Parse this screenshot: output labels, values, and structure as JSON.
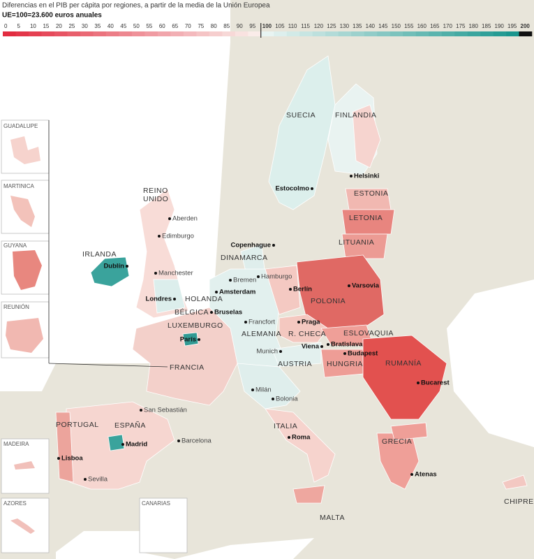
{
  "header": {
    "title": "Diferencias en el PIB per cápita por regiones, a partir de la media de la Unión Europea",
    "subtitle": "UE=100=23.600 euros anuales"
  },
  "legend": {
    "ticks": [
      0,
      5,
      10,
      15,
      20,
      25,
      30,
      35,
      40,
      45,
      50,
      55,
      60,
      65,
      70,
      75,
      80,
      85,
      90,
      95,
      100,
      105,
      110,
      115,
      120,
      125,
      130,
      135,
      140,
      145,
      150,
      155,
      160,
      165,
      170,
      175,
      180,
      185,
      190,
      195,
      200
    ]
  },
  "countries": [
    "SUECIA",
    "FINLANDIA",
    "REINO",
    "UNIDO",
    "ESTONIA",
    "LETONIA",
    "LITUANIA",
    "IRLANDA",
    "DINAMARCA",
    "POLONIA",
    "HOLANDA",
    "BÉLGICA",
    "LUXEMBURGO",
    "ALEMANIA",
    "R. CHECA",
    "ESLOVAQUIA",
    "AUSTRIA",
    "HUNGRIA",
    "RUMANÍA",
    "FRANCIA",
    "PORTUGAL",
    "ESPAÑA",
    "ITALIA",
    "GRECIA",
    "MALTA",
    "CHIPRE"
  ],
  "cities": [
    {
      "name": "Helsinki",
      "capital": true
    },
    {
      "name": "Estocolmo",
      "capital": true
    },
    {
      "name": "Aberden",
      "capital": false
    },
    {
      "name": "Edimburgo",
      "capital": false
    },
    {
      "name": "Copenhague",
      "capital": true
    },
    {
      "name": "Dublín",
      "capital": true
    },
    {
      "name": "Manchester",
      "capital": false
    },
    {
      "name": "Bremen",
      "capital": false
    },
    {
      "name": "Hamburgo",
      "capital": false
    },
    {
      "name": "Amsterdam",
      "capital": true
    },
    {
      "name": "Berlín",
      "capital": true
    },
    {
      "name": "Varsovia",
      "capital": true
    },
    {
      "name": "Londres",
      "capital": true
    },
    {
      "name": "Bruselas",
      "capital": true
    },
    {
      "name": "Francfort",
      "capital": false
    },
    {
      "name": "Praga",
      "capital": true
    },
    {
      "name": "París",
      "capital": true
    },
    {
      "name": "Bratislava",
      "capital": true
    },
    {
      "name": "Viena",
      "capital": true
    },
    {
      "name": "Budapest",
      "capital": true
    },
    {
      "name": "Munich",
      "capital": false
    },
    {
      "name": "Bucarest",
      "capital": true
    },
    {
      "name": "Milán",
      "capital": false
    },
    {
      "name": "Bolonia",
      "capital": false
    },
    {
      "name": "San Sebastián",
      "capital": false
    },
    {
      "name": "Madrid",
      "capital": true
    },
    {
      "name": "Barcelona",
      "capital": false
    },
    {
      "name": "Roma",
      "capital": true
    },
    {
      "name": "Lisboa",
      "capital": true
    },
    {
      "name": "Sevilla",
      "capital": false
    },
    {
      "name": "Atenas",
      "capital": true
    }
  ],
  "insets": [
    "GUADALUPE",
    "MARTINICA",
    "GUYANA",
    "REUNIÓN",
    "MADEIRA",
    "AZORES",
    "CANARIAS"
  ]
}
